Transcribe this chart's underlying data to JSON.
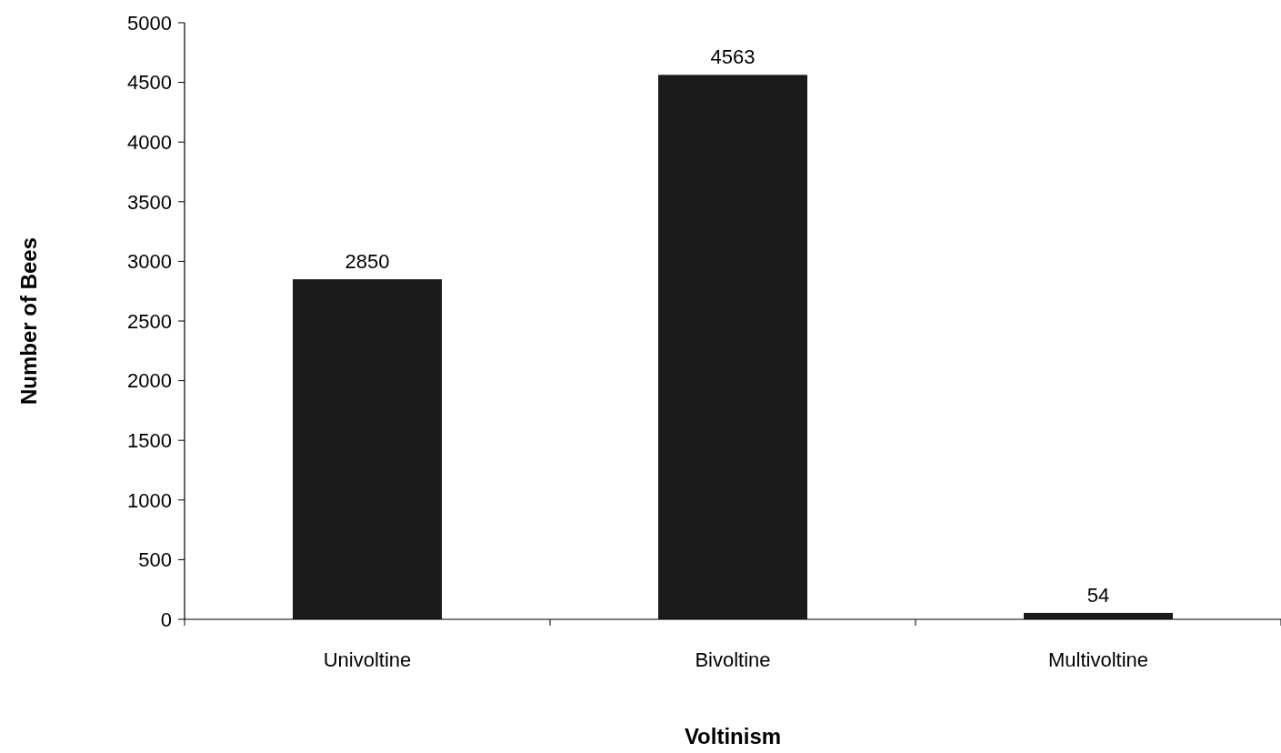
{
  "chart_data": {
    "type": "bar",
    "xlabel": "Voltinism",
    "ylabel": "Number of Bees",
    "categories": [
      "Univoltine",
      "Bivoltine",
      "Multivoltine"
    ],
    "values": [
      2850,
      4563,
      54
    ],
    "color": "#1a1a1a",
    "ylim": [
      0,
      5000
    ],
    "yticks": [
      0,
      500,
      1000,
      1500,
      2000,
      2500,
      3000,
      3500,
      4000,
      4500,
      5000
    ],
    "data_labels": true,
    "grid": false
  }
}
